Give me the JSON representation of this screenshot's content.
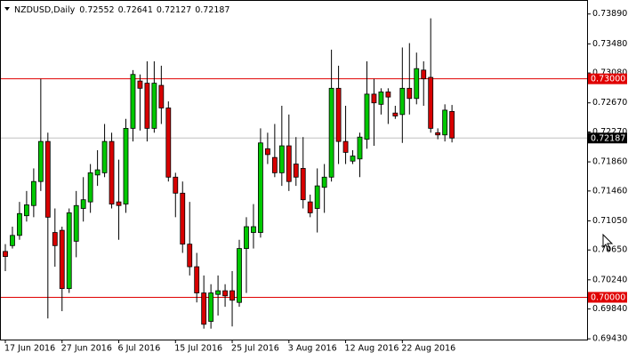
{
  "chart_data": {
    "type": "candlestick",
    "title": "NZDUSD,Daily",
    "header_values": [
      0.72552,
      0.72641,
      0.72127,
      0.72187
    ],
    "categories": [
      "17 Jun 2016",
      null,
      null,
      null,
      null,
      null,
      null,
      null,
      "27 Jun 2016",
      null,
      null,
      null,
      null,
      null,
      null,
      null,
      "6 Jul 2016",
      null,
      null,
      null,
      null,
      null,
      null,
      null,
      "15 Jul 2016",
      null,
      null,
      null,
      null,
      null,
      null,
      null,
      "25 Jul 2016",
      null,
      null,
      null,
      null,
      null,
      null,
      null,
      "3 Aug 2016",
      null,
      null,
      null,
      null,
      null,
      null,
      null,
      "12 Aug 2016",
      null,
      null,
      null,
      null,
      null,
      null,
      null,
      "22 Aug 2016",
      null,
      null,
      null,
      null,
      null,
      null,
      null
    ],
    "open": [
      0.7063,
      0.7071,
      0.7085,
      0.7112,
      0.7126,
      0.7159,
      0.7214,
      0.7089,
      0.7092,
      0.7012,
      0.7077,
      0.7122,
      0.7131,
      0.7168,
      0.7171,
      0.7214,
      0.7131,
      0.7128,
      0.7232,
      0.7297,
      0.7294,
      0.7232,
      0.7291,
      0.726,
      0.7165,
      0.7143,
      0.7073,
      0.7042,
      0.7006,
      0.6967,
      0.7004,
      0.7009,
      0.7009,
      0.6993,
      0.7067,
      0.7089,
      0.7089,
      0.7204,
      0.7192,
      0.7171,
      0.7208,
      0.7183,
      0.7177,
      0.7131,
      0.7122,
      0.7151,
      0.7165,
      0.7287,
      0.7214,
      0.7187,
      0.719,
      0.7217,
      0.7279,
      0.7265,
      0.7282,
      0.7253,
      0.7251,
      0.7287,
      0.7273,
      0.7312,
      0.7302,
      0.7226,
      0.7223,
      0.72552
    ],
    "high": [
      0.7073,
      0.7097,
      0.7131,
      0.7146,
      0.7177,
      0.73,
      0.7226,
      0.7122,
      0.7097,
      0.7122,
      0.7146,
      0.7165,
      0.7183,
      0.7202,
      0.7238,
      0.7226,
      0.7189,
      0.7245,
      0.7312,
      0.7306,
      0.7324,
      0.7324,
      0.7318,
      0.7269,
      0.7171,
      0.7159,
      0.7131,
      0.7061,
      0.703,
      0.7018,
      0.703,
      0.7018,
      0.7036,
      0.7079,
      0.711,
      0.7128,
      0.7232,
      0.7226,
      0.7238,
      0.7263,
      0.7251,
      0.722,
      0.722,
      0.7141,
      0.7177,
      0.7183,
      0.734,
      0.7318,
      0.7263,
      0.7202,
      0.7226,
      0.7324,
      0.73,
      0.7287,
      0.7287,
      0.7263,
      0.7343,
      0.7349,
      0.7336,
      0.7324,
      0.7383,
      0.7232,
      0.7265,
      0.72641
    ],
    "low": [
      0.7036,
      0.7067,
      0.7079,
      0.7104,
      0.711,
      0.7146,
      0.6971,
      0.7042,
      0.6981,
      0.7006,
      0.7055,
      0.7104,
      0.7116,
      0.7153,
      0.7165,
      0.7122,
      0.7079,
      0.7116,
      0.7214,
      0.7229,
      0.7214,
      0.7226,
      0.7238,
      0.7159,
      0.711,
      0.7061,
      0.703,
      0.6993,
      0.6957,
      0.6957,
      0.6975,
      0.6987,
      0.696,
      0.6987,
      0.7006,
      0.7067,
      0.7082,
      0.7183,
      0.7165,
      0.7153,
      0.7146,
      0.7153,
      0.7122,
      0.711,
      0.7089,
      0.7116,
      0.7159,
      0.7183,
      0.7183,
      0.7183,
      0.7165,
      0.7204,
      0.7208,
      0.7251,
      0.7238,
      0.7245,
      0.7212,
      0.7251,
      0.7265,
      0.7263,
      0.7226,
      0.7217,
      0.7214,
      0.72127
    ],
    "close": [
      0.7056,
      0.7085,
      0.7115,
      0.7127,
      0.7159,
      0.7214,
      0.711,
      0.7071,
      0.7012,
      0.7116,
      0.7126,
      0.7134,
      0.7171,
      0.7175,
      0.7214,
      0.7128,
      0.7126,
      0.7232,
      0.7306,
      0.7287,
      0.7232,
      0.7294,
      0.726,
      0.7165,
      0.7143,
      0.7073,
      0.7042,
      0.7006,
      0.6963,
      0.7006,
      0.7009,
      0.7002,
      0.6996,
      0.7067,
      0.7097,
      0.7097,
      0.7212,
      0.7196,
      0.7171,
      0.7208,
      0.7159,
      0.7165,
      0.7134,
      0.7116,
      0.7153,
      0.7165,
      0.7287,
      0.7214,
      0.7199,
      0.7194,
      0.722,
      0.7279,
      0.7267,
      0.7282,
      0.7275,
      0.7249,
      0.7287,
      0.7273,
      0.7314,
      0.73,
      0.7232,
      0.7223,
      0.7257,
      0.72187
    ],
    "up_color": "#00c800",
    "down_color": "#d80000",
    "ylim": [
      0.6942,
      0.7407
    ],
    "yticks": [
      {
        "value": 0.7389,
        "label": "0.73890"
      },
      {
        "value": 0.7348,
        "label": "0.73480"
      },
      {
        "value": 0.7308,
        "label": "0.73080"
      },
      {
        "value": 0.7267,
        "label": "0.72670"
      },
      {
        "value": 0.7227,
        "label": "0.72270"
      },
      {
        "value": 0.7186,
        "label": "0.71860"
      },
      {
        "value": 0.7146,
        "label": "0.71460"
      },
      {
        "value": 0.7105,
        "label": "0.71050"
      },
      {
        "value": 0.7065,
        "label": "0.70650"
      },
      {
        "value": 0.7024,
        "label": "0.70240"
      },
      {
        "value": 0.6984,
        "label": "0.69840"
      },
      {
        "value": 0.6943,
        "label": "0.69430"
      }
    ],
    "levels": [
      {
        "value": 0.73,
        "label": "0.73000"
      },
      {
        "value": 0.7,
        "label": "0.70000"
      }
    ],
    "level_color": "#e00000",
    "current_price": 0.72187,
    "current_color": "#c0c0c0"
  }
}
